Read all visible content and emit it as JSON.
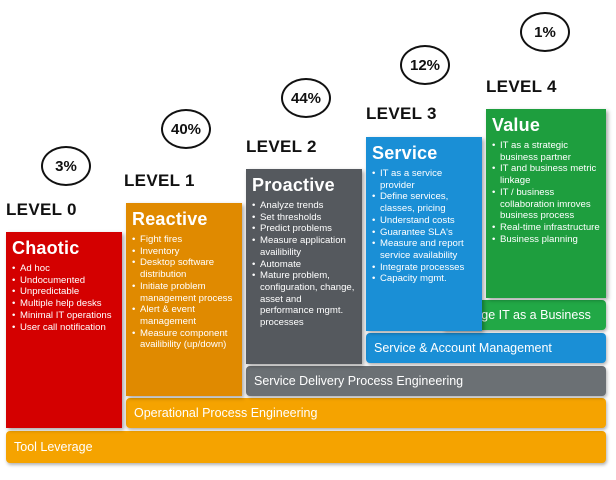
{
  "levels": [
    {
      "level_label": "LEVEL 0",
      "percent": "3%",
      "title": "Chaotic",
      "color": "#d40000",
      "items": [
        "Ad hoc",
        "Undocumented",
        "Unpredictable",
        "Multiple help desks",
        "Minimal IT operations",
        "User call notification"
      ]
    },
    {
      "level_label": "LEVEL 1",
      "percent": "40%",
      "title": "Reactive",
      "color": "#e08a00",
      "items": [
        "Fight fires",
        "Inventory",
        "Desktop software distribution",
        "Initiate problem management process",
        "Alert & event management",
        "Measure component availibility (up/down)"
      ]
    },
    {
      "level_label": "LEVEL 2",
      "percent": "44%",
      "title": "Proactive",
      "color": "#55595e",
      "items": [
        "Analyze trends",
        "Set thresholds",
        "Predict problems",
        "Measure application availibility",
        "Automate",
        "Mature problem, configuration, change, asset and performance mgmt. processes"
      ]
    },
    {
      "level_label": "LEVEL 3",
      "percent": "12%",
      "title": "Service",
      "color": "#1a8fd6",
      "items": [
        "IT as a service provider",
        "Define services, classes, pricing",
        "Understand costs",
        "Guarantee SLA's",
        "Measure and report service availability",
        "Integrate processes",
        "Capacity mgmt."
      ]
    },
    {
      "level_label": "LEVEL 4",
      "percent": "1%",
      "title": "Value",
      "color": "#1e9e3e",
      "items": [
        "IT as a strategic business partner",
        "IT and business metric linkage",
        "IT / business collaboration imroves business process",
        "Real-time infrastructure",
        "Business planning"
      ]
    }
  ],
  "bands": [
    {
      "label": "Manage IT as a Business",
      "color": "#22a846",
      "text_color": "#ffffff"
    },
    {
      "label": "Service & Account Management",
      "color": "#1a8fd6",
      "text_color": "#ffffff"
    },
    {
      "label": "Service Delivery Process Engineering",
      "color": "#6b7074",
      "text_color": "#ffffff"
    },
    {
      "label": "Operational Process Engineering",
      "color": "#f5a300",
      "text_color": "#ffffff"
    },
    {
      "label": "Tool Leverage",
      "color": "#f5a300",
      "text_color": "#ffffff"
    }
  ]
}
